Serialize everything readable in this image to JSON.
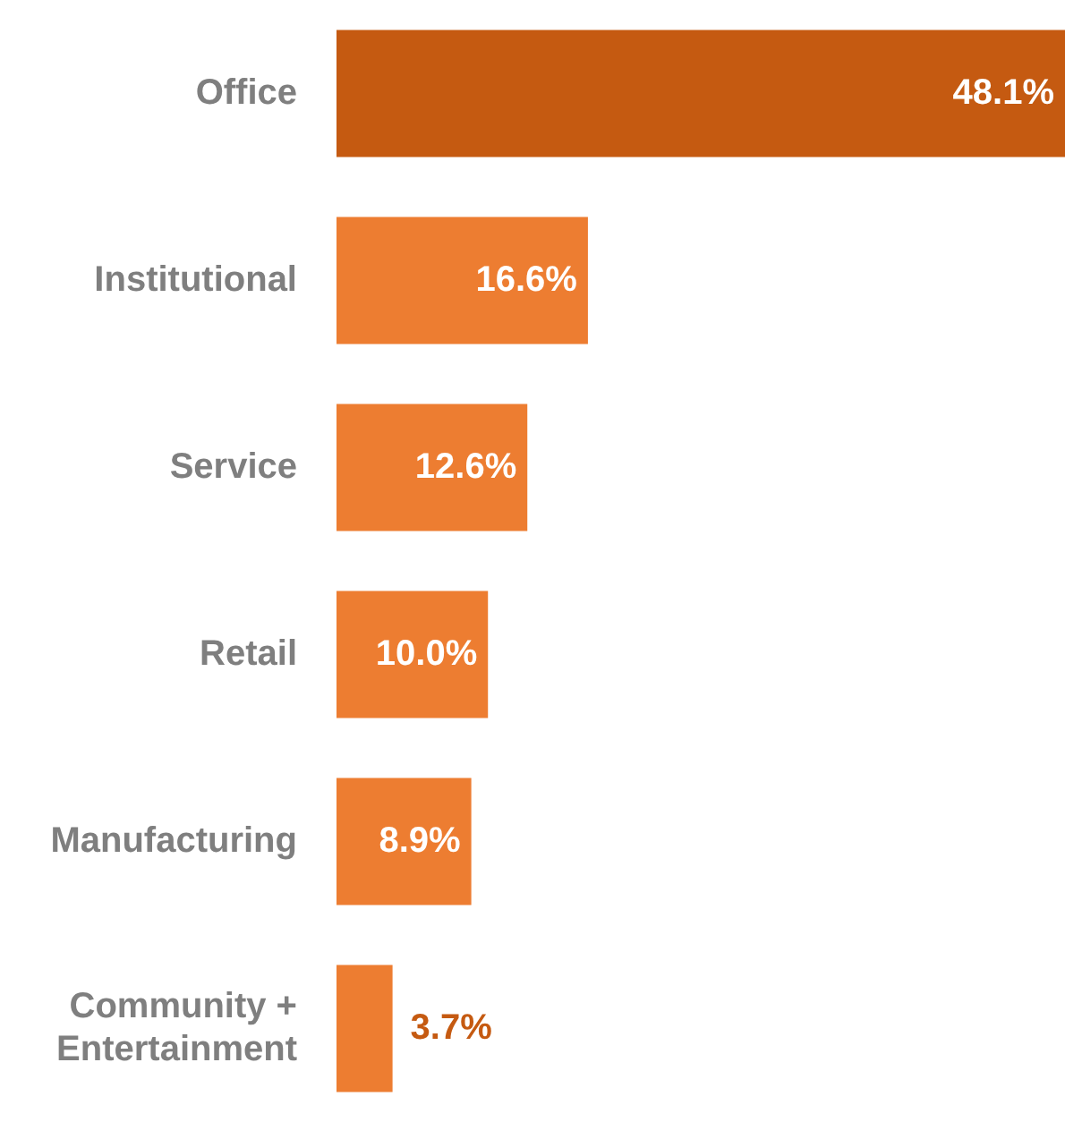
{
  "chart_data": {
    "type": "bar",
    "orientation": "horizontal",
    "categories": [
      "Office",
      "Institutional",
      "Service",
      "Retail",
      "Manufacturing",
      "Community + Entertainment"
    ],
    "values": [
      48.1,
      16.6,
      12.6,
      10.0,
      8.9,
      3.7
    ],
    "colors": [
      "#c55a11",
      "#ed7d31",
      "#ed7d31",
      "#ed7d31",
      "#ed7d31",
      "#ed7d31"
    ],
    "value_labels": [
      "48.1%",
      "16.6%",
      "12.6%",
      "10.0%",
      "8.9%",
      "3.7%"
    ],
    "legend": false,
    "tick_labels": "y"
  }
}
